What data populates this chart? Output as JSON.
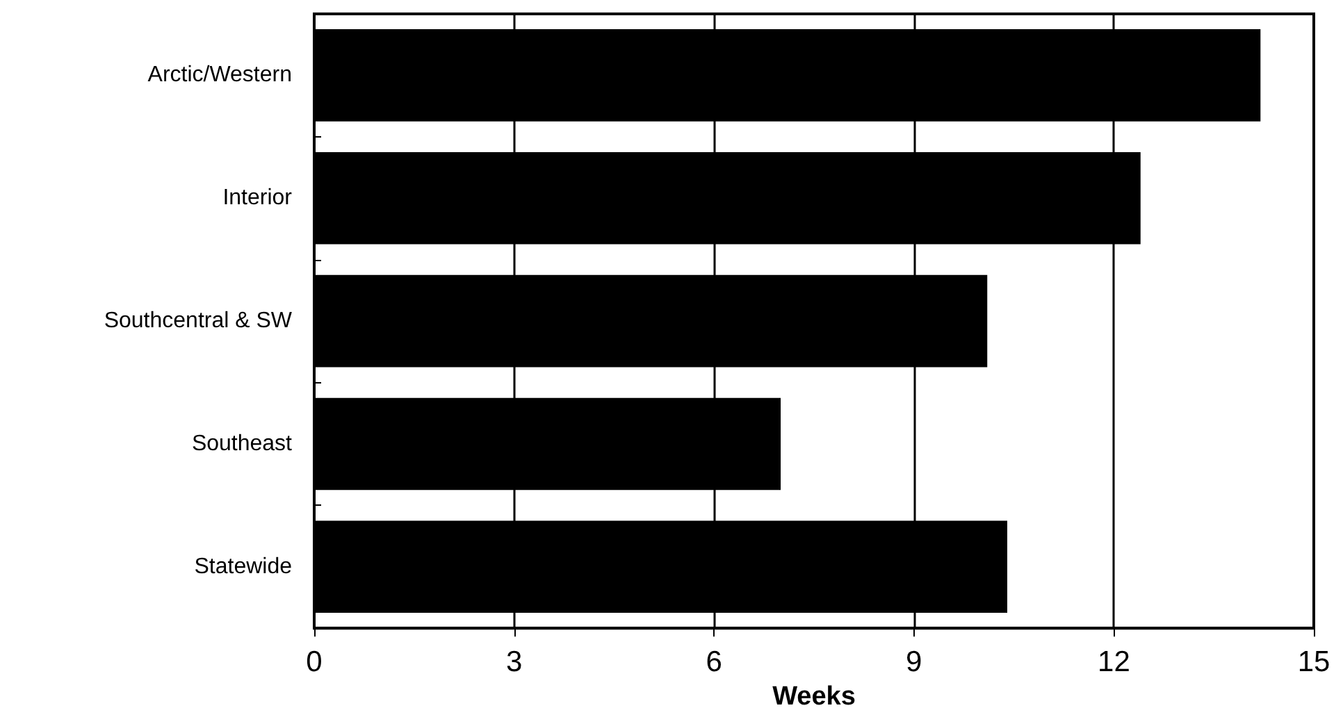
{
  "chart_data": {
    "type": "bar",
    "orientation": "horizontal",
    "xlabel": "Weeks",
    "categories": [
      "Arctic/Western",
      "Interior",
      "Southcentral & SW",
      "Southeast",
      "Statewide"
    ],
    "values": [
      14.2,
      12.4,
      10.1,
      7.0,
      10.4
    ],
    "color": "#000000",
    "xlim": [
      0,
      15
    ],
    "xticks": [
      0,
      3,
      6,
      9,
      12,
      15
    ],
    "grid": "x"
  }
}
